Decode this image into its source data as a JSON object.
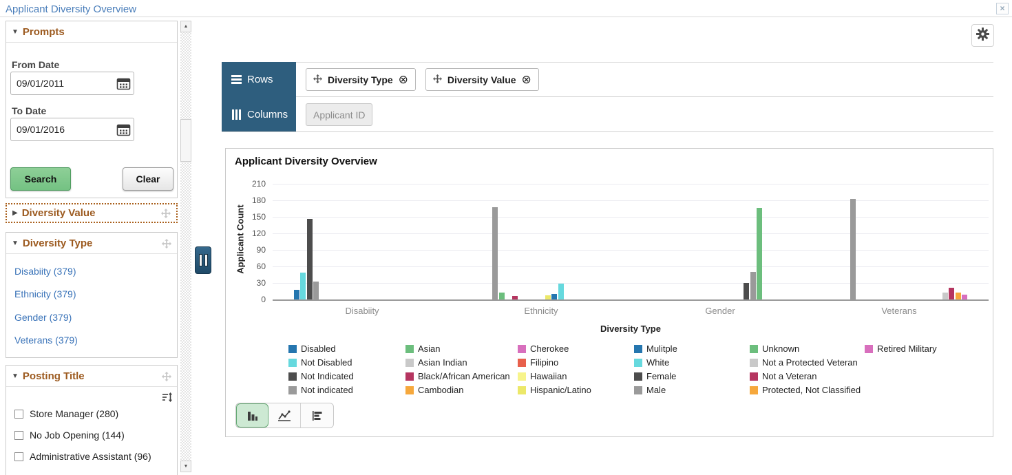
{
  "window": {
    "title": "Applicant Diversity Overview",
    "close_glyph": "×"
  },
  "icons": {
    "expanded": "▼",
    "collapsed": "▶",
    "scroll_up": "▲",
    "scroll_down": "▼",
    "remove": "⊗"
  },
  "colors": {
    "accent_blue": "#2e5e7e",
    "title_blue": "#4a7eba",
    "link_blue": "#3b74b9",
    "section_brown": "#9c5a1f",
    "search_green": "#74c283",
    "selected_toggle_green": "#cde9d3"
  },
  "sidebar": {
    "prompts": {
      "title": "Prompts",
      "from_date_label": "From Date",
      "from_date_value": "09/01/2011",
      "to_date_label": "To Date",
      "to_date_value": "09/01/2016",
      "search_label": "Search",
      "clear_label": "Clear"
    },
    "diversity_value": {
      "title": "Diversity Value"
    },
    "diversity_type": {
      "title": "Diversity Type",
      "items": [
        {
          "label": "Disabiity (379)"
        },
        {
          "label": "Ethnicity (379)"
        },
        {
          "label": "Gender (379)"
        },
        {
          "label": "Veterans (379)"
        }
      ]
    },
    "posting_title": {
      "title": "Posting Title",
      "items": [
        {
          "label": "Store Manager (280)",
          "checked": false
        },
        {
          "label": "No Job Opening (144)",
          "checked": false
        },
        {
          "label": "Administrative Assistant (96)",
          "checked": false
        }
      ]
    }
  },
  "pivot": {
    "rows_tab": "Rows",
    "columns_tab": "Columns",
    "row_chips": [
      {
        "label": "Diversity Type",
        "removable": true
      },
      {
        "label": "Diversity Value",
        "removable": true
      }
    ],
    "column_chips": [
      {
        "label": "Applicant ID",
        "removable": false
      }
    ]
  },
  "chart_toolbar": {
    "types": [
      "bar",
      "line",
      "hbar"
    ],
    "selected": "bar"
  },
  "chart_data": {
    "type": "bar",
    "title": "Applicant Diversity Overview",
    "xlabel": "Diversity Type",
    "ylabel": "Applicant Count",
    "ylim": [
      0,
      210
    ],
    "yticks": [
      0,
      30,
      60,
      90,
      120,
      150,
      180,
      210
    ],
    "grid": true,
    "legend_position": "bottom",
    "categories": [
      "Disabiity",
      "Ethnicity",
      "Gender",
      "Veterans"
    ],
    "series": [
      {
        "name": "Disabled",
        "color": "#2576af",
        "values": [
          18,
          0,
          0,
          0
        ]
      },
      {
        "name": "Not Disabled",
        "color": "#66d9de",
        "values": [
          49,
          0,
          0,
          0
        ]
      },
      {
        "name": "Not Indicated",
        "color": "#4d4d4d",
        "values": [
          146,
          0,
          0,
          0
        ]
      },
      {
        "name": "Not indicated",
        "color": "#9a9a9a",
        "values": [
          33,
          168,
          0,
          182
        ]
      },
      {
        "name": "Asian",
        "color": "#6cbe7d",
        "values": [
          0,
          13,
          0,
          0
        ]
      },
      {
        "name": "Asian Indian",
        "color": "#c9c9c9",
        "values": [
          0,
          0,
          0,
          0
        ]
      },
      {
        "name": "Black/African American",
        "color": "#b53560",
        "values": [
          0,
          6,
          0,
          0
        ]
      },
      {
        "name": "Cambodian",
        "color": "#f6a83c",
        "values": [
          0,
          0,
          0,
          0
        ]
      },
      {
        "name": "Cherokee",
        "color": "#d86fbd",
        "values": [
          0,
          0,
          0,
          0
        ]
      },
      {
        "name": "Filipino",
        "color": "#e8604c",
        "values": [
          0,
          0,
          0,
          0
        ]
      },
      {
        "name": "Hawaiian",
        "color": "#f7f48b",
        "values": [
          0,
          0,
          0,
          0
        ]
      },
      {
        "name": "Hispanic/Latino",
        "color": "#ece869",
        "values": [
          0,
          7,
          0,
          0
        ]
      },
      {
        "name": "Mulitple",
        "color": "#2576af",
        "values": [
          0,
          10,
          0,
          0
        ]
      },
      {
        "name": "White",
        "color": "#66d9de",
        "values": [
          0,
          29,
          0,
          0
        ]
      },
      {
        "name": "Female",
        "color": "#4d4d4d",
        "values": [
          0,
          0,
          30,
          0
        ]
      },
      {
        "name": "Male",
        "color": "#9a9a9a",
        "values": [
          0,
          0,
          50,
          0
        ]
      },
      {
        "name": "Unknown",
        "color": "#6cbe7d",
        "values": [
          0,
          0,
          166,
          0
        ]
      },
      {
        "name": "Not a Protected Veteran",
        "color": "#c9c9c9",
        "values": [
          0,
          0,
          0,
          12
        ]
      },
      {
        "name": "Not a Veteran",
        "color": "#b53560",
        "values": [
          0,
          0,
          0,
          21
        ]
      },
      {
        "name": "Protected, Not Classified",
        "color": "#f6a83c",
        "values": [
          0,
          0,
          0,
          13
        ]
      },
      {
        "name": "Retired Military",
        "color": "#d86fbd",
        "values": [
          0,
          0,
          0,
          9
        ]
      }
    ]
  }
}
